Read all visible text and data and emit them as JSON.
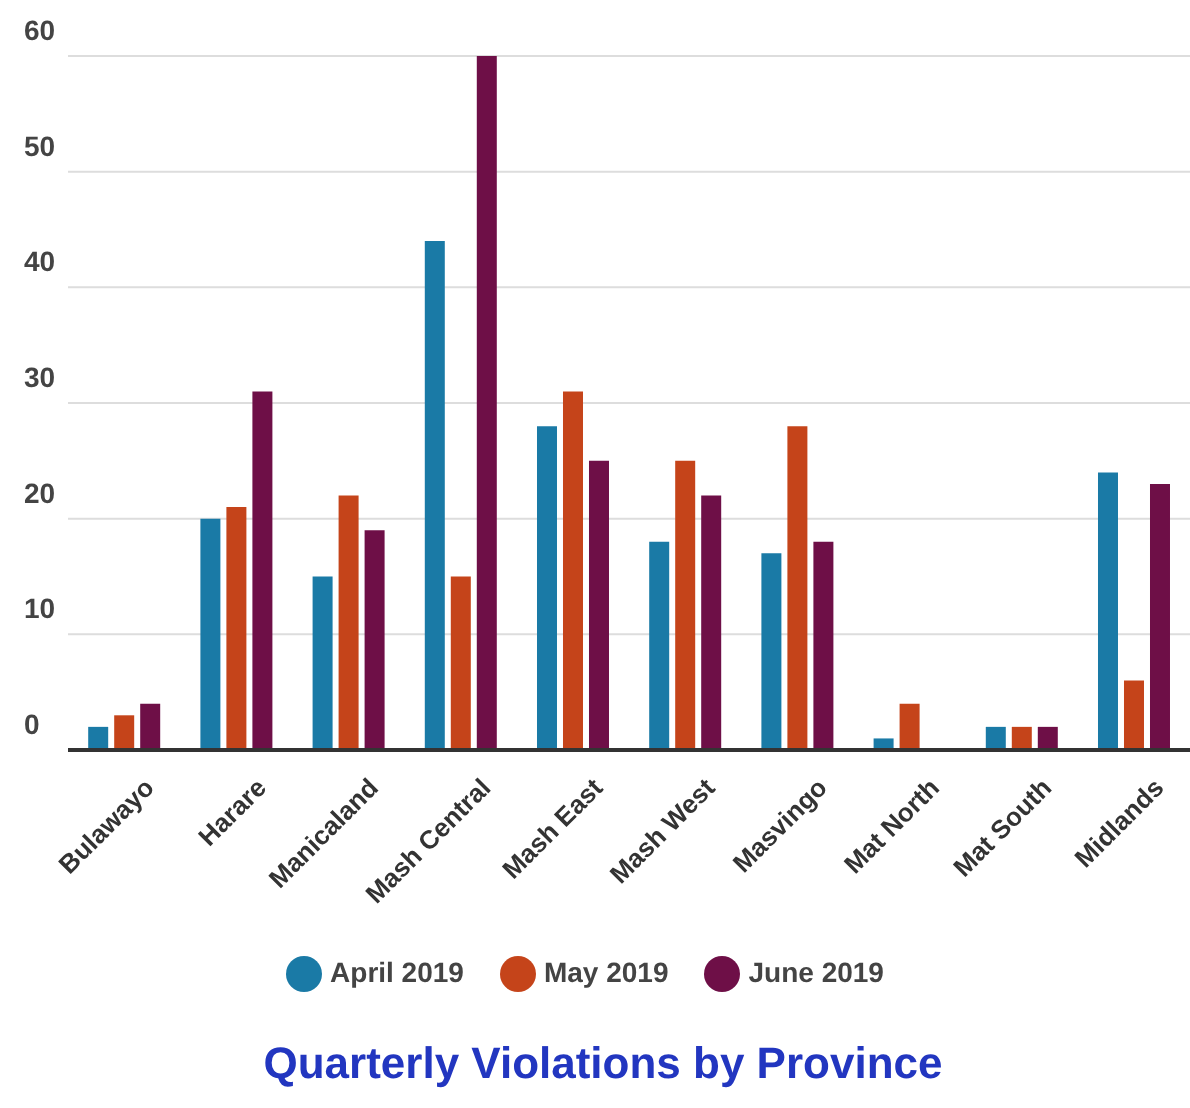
{
  "chart_data": {
    "type": "bar",
    "title": "Quarterly Violations by Province",
    "categories": [
      "Bulawayo",
      "Harare",
      "Manicaland",
      "Mash Central",
      "Mash East",
      "Mash West",
      "Masvingo",
      "Mat North",
      "Mat South",
      "Midlands"
    ],
    "series": [
      {
        "name": "April 2019",
        "color": "#1a7aa6",
        "values": [
          2,
          20,
          15,
          44,
          28,
          18,
          17,
          1,
          2,
          24
        ]
      },
      {
        "name": "May 2019",
        "color": "#c5441a",
        "values": [
          3,
          21,
          22,
          15,
          31,
          25,
          28,
          4,
          2,
          6
        ]
      },
      {
        "name": "June 2019",
        "color": "#6e0f47",
        "values": [
          4,
          31,
          19,
          60,
          25,
          22,
          18,
          0,
          2,
          23
        ]
      }
    ],
    "ylim": [
      0,
      60
    ],
    "yticks": [
      0,
      10,
      20,
      30,
      40,
      50,
      60
    ],
    "grid": "y",
    "legend": "bottom"
  }
}
